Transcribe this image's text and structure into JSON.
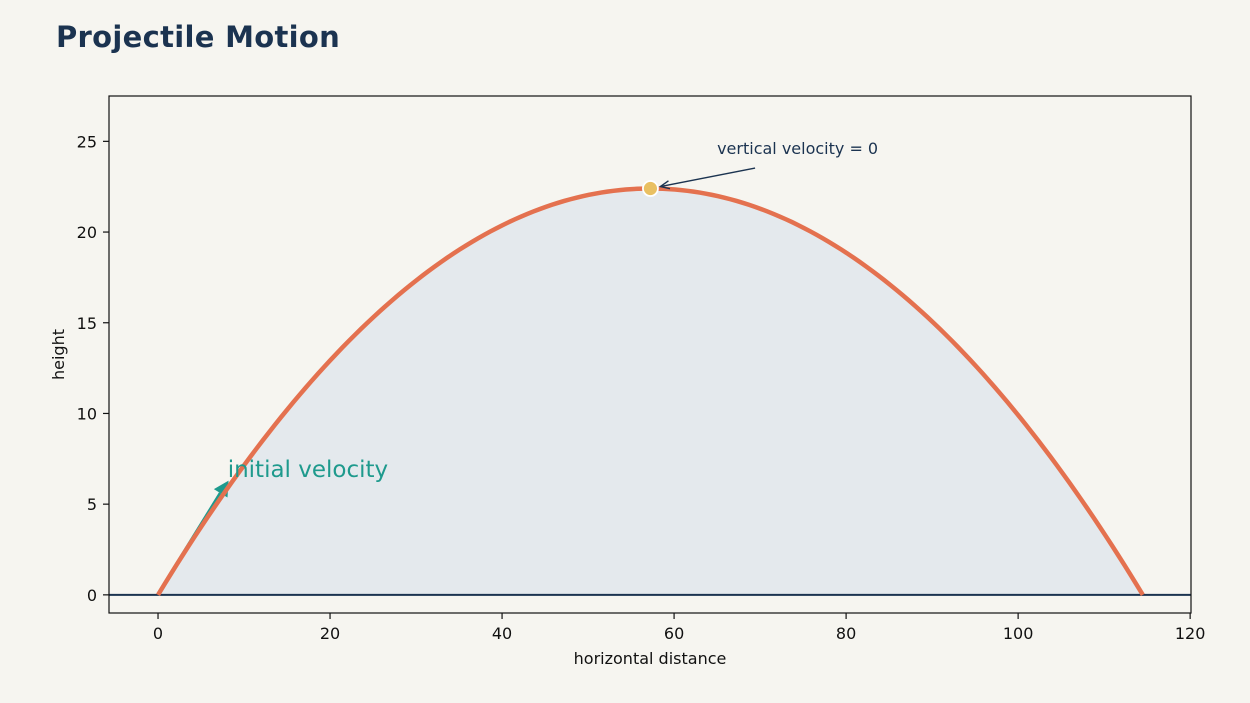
{
  "page": {
    "title": "Projectile Motion"
  },
  "chart_data": {
    "type": "line",
    "title": "Projectile Motion",
    "xlabel": "horizontal distance",
    "ylabel": "height",
    "xlim": [
      -5.7,
      120.1
    ],
    "ylim": [
      -1.0,
      27.5
    ],
    "xticks": [
      0,
      20,
      40,
      60,
      80,
      100,
      120
    ],
    "yticks": [
      0,
      5,
      10,
      15,
      20,
      25
    ],
    "grid": false,
    "series": [
      {
        "kind": "trajectory",
        "color": "#e4714f",
        "fill_color": "#e4e9ed",
        "x_range": [
          0,
          114.5
        ],
        "apex": {
          "x": 57.25,
          "y": 22.4
        }
      }
    ],
    "ground_line": {
      "y": 0,
      "color": "#1b3350"
    },
    "annotations": [
      {
        "name": "apex",
        "text": "vertical velocity = 0",
        "point": {
          "x": 57.25,
          "y": 22.4
        },
        "text_at": {
          "x": 65,
          "y": 24.3
        },
        "color": "#1b3350",
        "marker_color": "#e9c062"
      },
      {
        "name": "launch-velocity",
        "text": "initial velocity",
        "from": {
          "x": 0,
          "y": 0
        },
        "to": {
          "x": 8.2,
          "y": 6.3
        },
        "text_at": {
          "x": 8.1,
          "y": 6.5
        },
        "color": "#1e9a8d"
      }
    ]
  }
}
